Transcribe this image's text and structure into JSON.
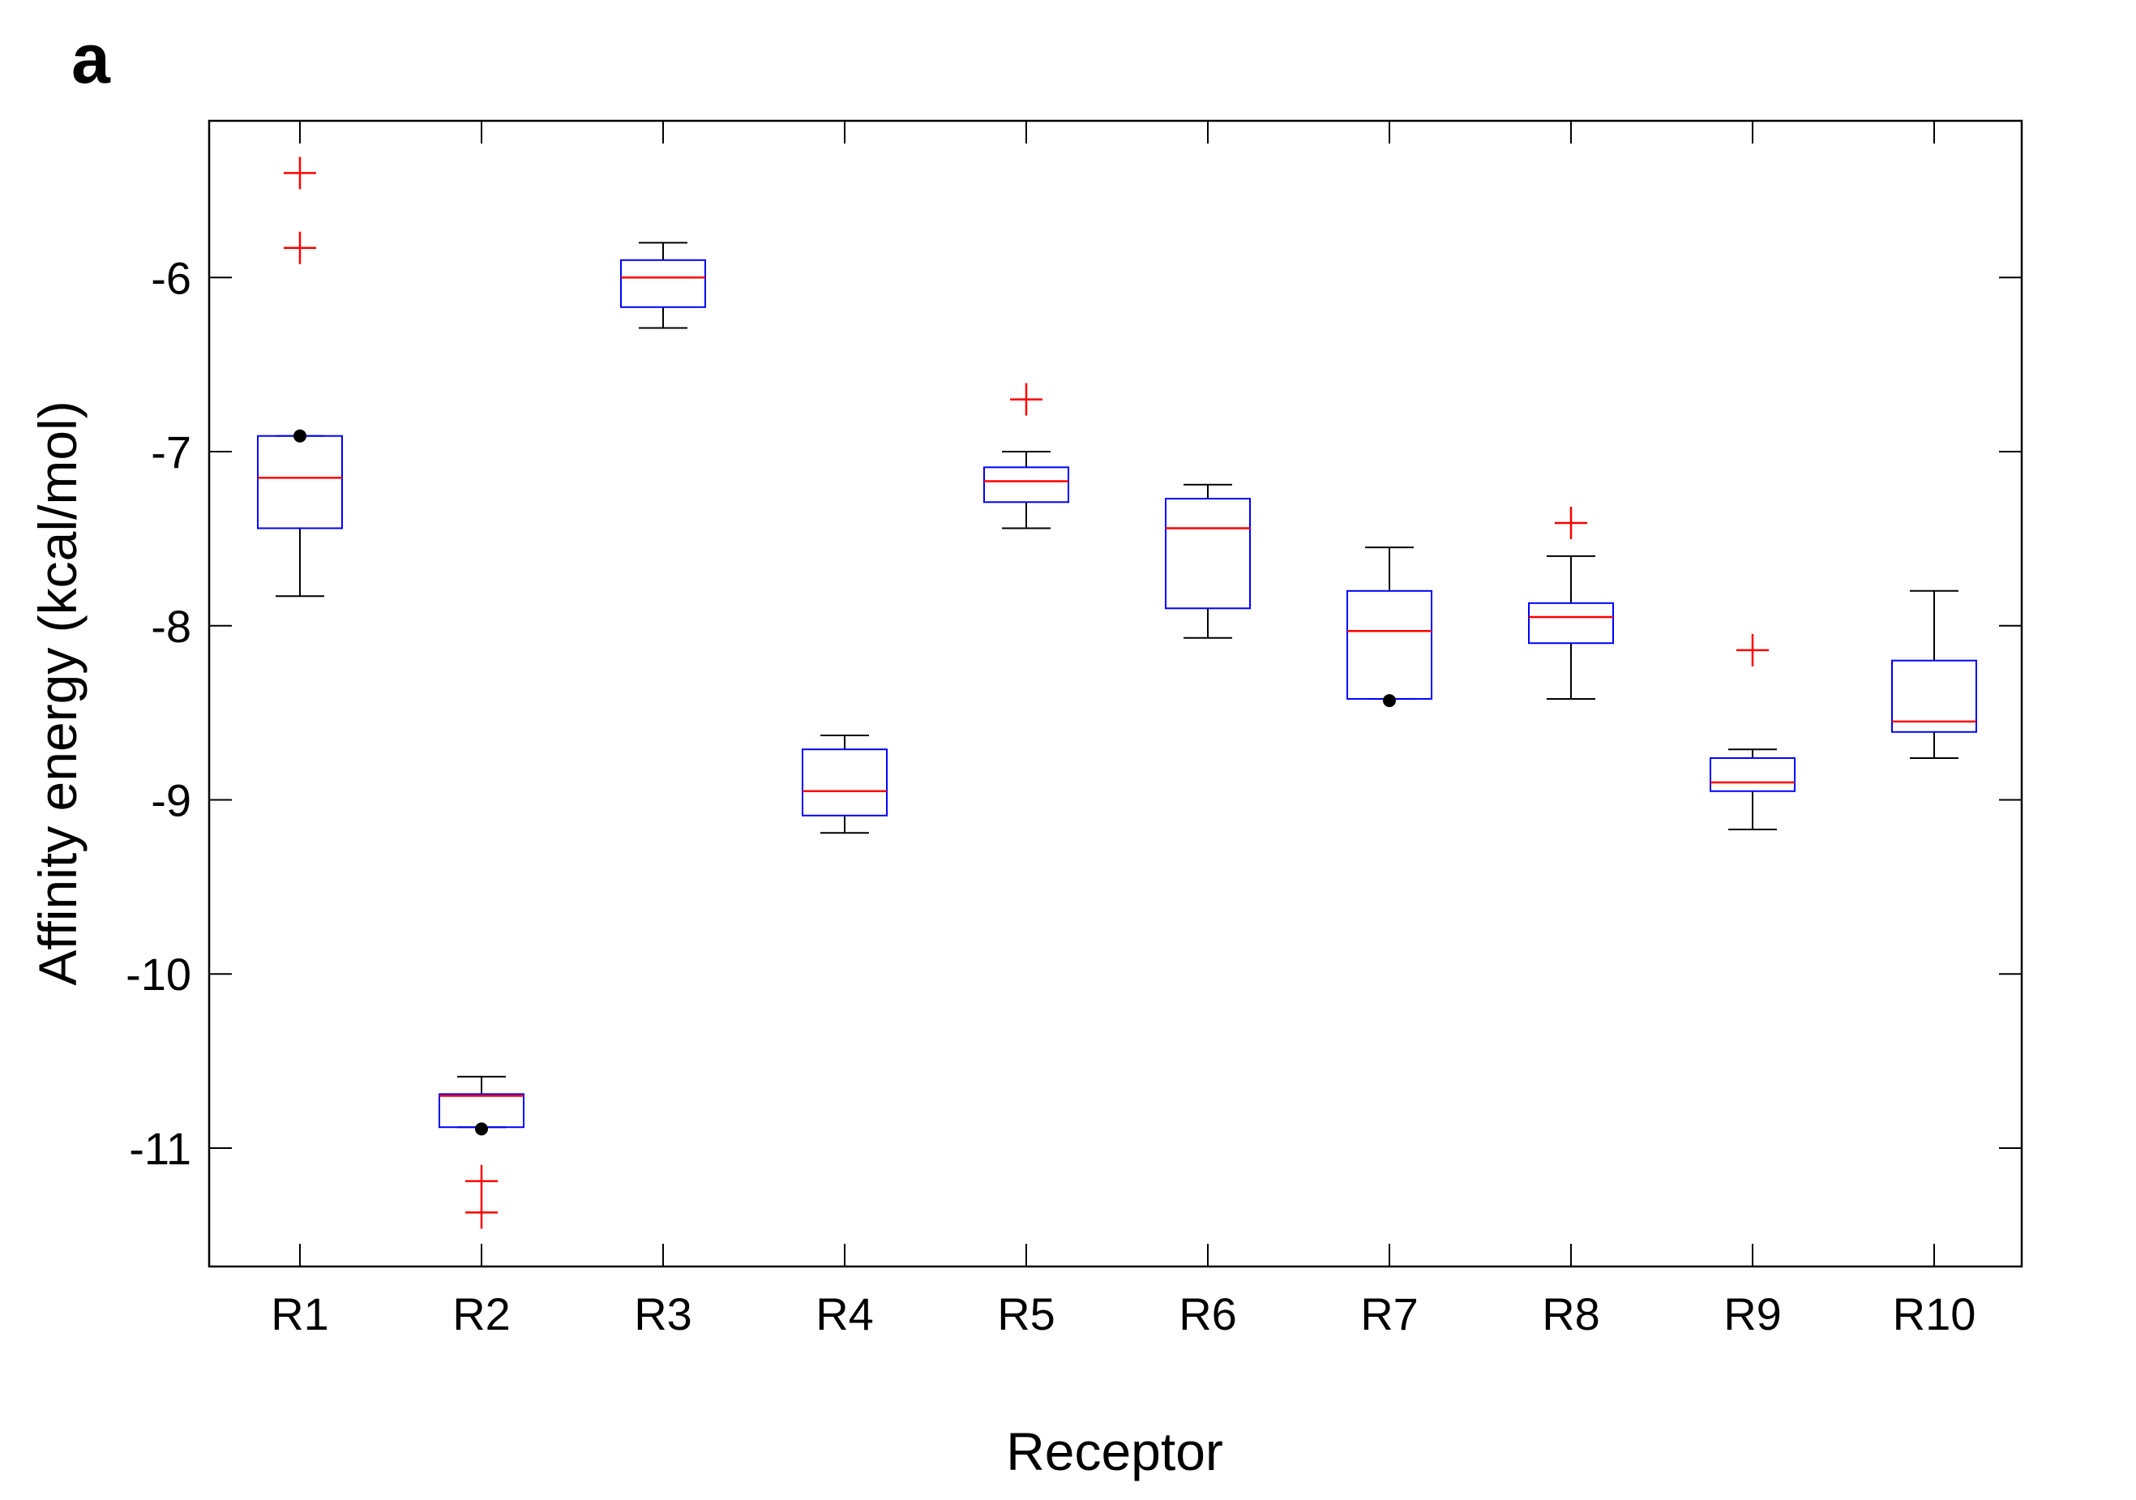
{
  "panel_label": "a",
  "chart_data": {
    "type": "boxplot",
    "title": "",
    "xlabel": "Receptor",
    "ylabel": "Affinity energy (kcal/mol)",
    "ylim": [
      -11.68,
      -5.1
    ],
    "yticks": [
      -6,
      -7,
      -8,
      -9,
      -10,
      -11
    ],
    "ytick_labels": [
      "-6",
      "-7",
      "-8",
      "-9",
      "-10",
      "-11"
    ],
    "grid": false,
    "colors": {
      "box": "#0000ff",
      "median": "#ff0000",
      "whisker": "#000000",
      "outlier": "#ff0000",
      "point": "#000000"
    },
    "categories": [
      "R1",
      "R2",
      "R3",
      "R4",
      "R5",
      "R6",
      "R7",
      "R8",
      "R9",
      "R10"
    ],
    "boxes": [
      {
        "label": "R1",
        "whisker_low": -7.83,
        "q1": -7.44,
        "median": -7.15,
        "q3": -6.91,
        "whisker_high": -6.91,
        "outliers": [
          -5.4,
          -5.83
        ],
        "points": [
          -6.91
        ]
      },
      {
        "label": "R2",
        "whisker_low": -10.88,
        "q1": -10.88,
        "median": -10.7,
        "q3": -10.69,
        "whisker_high": -10.59,
        "outliers": [
          -11.19,
          -11.37
        ],
        "points": [
          -10.89
        ]
      },
      {
        "label": "R3",
        "whisker_low": -6.29,
        "q1": -6.17,
        "median": -6.0,
        "q3": -5.9,
        "whisker_high": -5.8,
        "outliers": [],
        "points": []
      },
      {
        "label": "R4",
        "whisker_low": -9.19,
        "q1": -9.09,
        "median": -8.95,
        "q3": -8.71,
        "whisker_high": -8.63,
        "outliers": [],
        "points": []
      },
      {
        "label": "R5",
        "whisker_low": -7.44,
        "q1": -7.29,
        "median": -7.17,
        "q3": -7.09,
        "whisker_high": -7.0,
        "outliers": [
          -6.7
        ],
        "points": []
      },
      {
        "label": "R6",
        "whisker_low": -8.07,
        "q1": -7.9,
        "median": -7.44,
        "q3": -7.27,
        "whisker_high": -7.19,
        "outliers": [],
        "points": []
      },
      {
        "label": "R7",
        "whisker_low": -8.42,
        "q1": -8.42,
        "median": -8.03,
        "q3": -7.8,
        "whisker_high": -7.55,
        "outliers": [],
        "points": [
          -8.43
        ]
      },
      {
        "label": "R8",
        "whisker_low": -8.42,
        "q1": -8.1,
        "median": -7.95,
        "q3": -7.87,
        "whisker_high": -7.6,
        "outliers": [
          -7.41
        ],
        "points": []
      },
      {
        "label": "R9",
        "whisker_low": -9.17,
        "q1": -8.95,
        "median": -8.9,
        "q3": -8.76,
        "whisker_high": -8.71,
        "outliers": [
          -8.14
        ],
        "points": []
      },
      {
        "label": "R10",
        "whisker_low": -8.76,
        "q1": -8.61,
        "median": -8.55,
        "q3": -8.2,
        "whisker_high": -7.8,
        "outliers": [],
        "points": []
      }
    ]
  }
}
